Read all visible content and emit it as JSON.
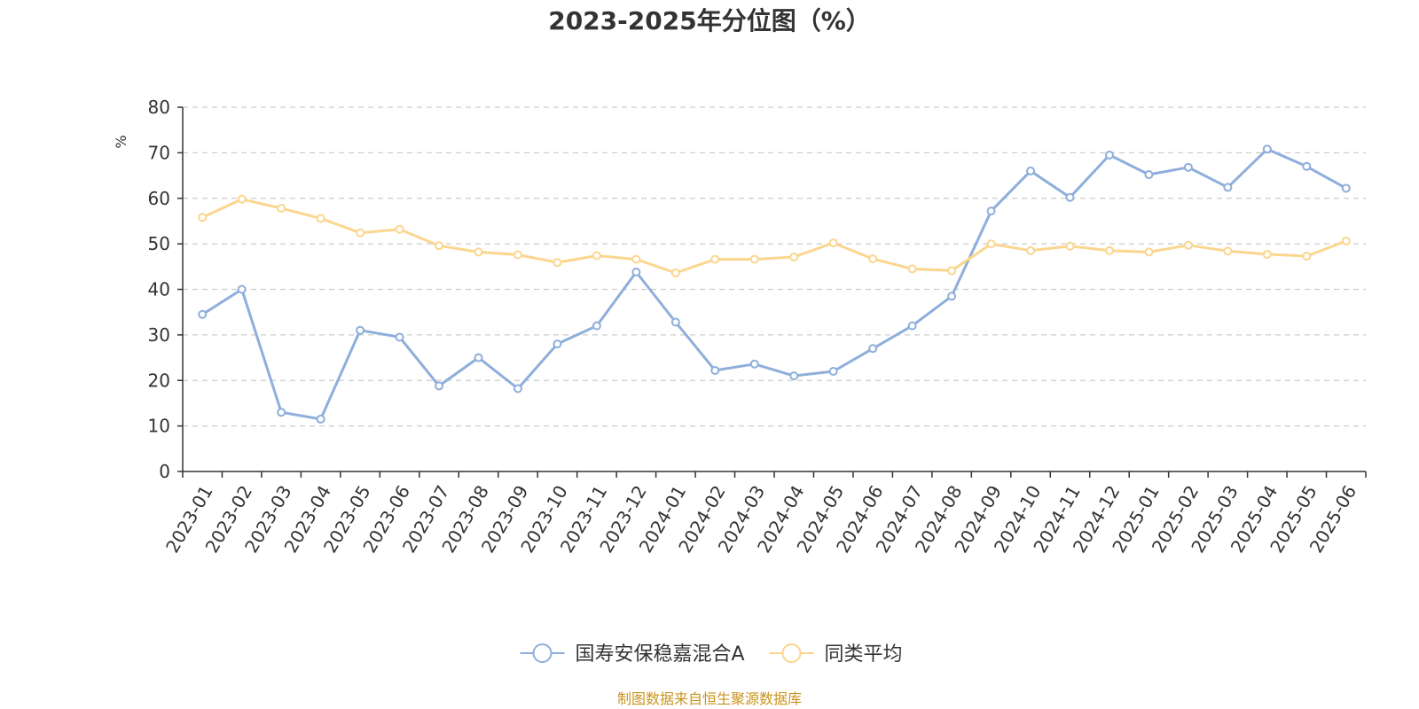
{
  "chart_data": {
    "type": "line",
    "title": "2023-2025年分位图（%）",
    "ylabel": "%",
    "xlabel": "",
    "ylim": [
      0,
      80
    ],
    "yticks": [
      0,
      10,
      20,
      30,
      40,
      50,
      60,
      70,
      80
    ],
    "grid": true,
    "legend_position": "bottom",
    "categories": [
      "2023-01",
      "2023-02",
      "2023-03",
      "2023-04",
      "2023-05",
      "2023-06",
      "2023-07",
      "2023-08",
      "2023-09",
      "2023-10",
      "2023-11",
      "2023-12",
      "2024-01",
      "2024-02",
      "2024-03",
      "2024-04",
      "2024-05",
      "2024-06",
      "2024-07",
      "2024-08",
      "2024-09",
      "2024-10",
      "2024-11",
      "2024-12",
      "2025-01",
      "2025-02",
      "2025-03",
      "2025-04",
      "2025-05",
      "2025-06"
    ],
    "series": [
      {
        "name": "国寿安保稳嘉混合A",
        "color": "#8eaedb",
        "values": [
          34.5,
          40.0,
          13.0,
          11.5,
          31.0,
          29.5,
          18.8,
          25.0,
          18.2,
          28.0,
          32.0,
          43.8,
          32.8,
          22.2,
          23.6,
          21.0,
          22.0,
          27.0,
          32.0,
          38.5,
          57.2,
          66.0,
          60.2,
          69.5,
          65.2,
          66.8,
          62.4,
          70.8,
          67.0,
          62.2
        ]
      },
      {
        "name": "同类平均",
        "color": "#fbd68e",
        "values": [
          55.8,
          59.8,
          57.8,
          55.6,
          52.4,
          53.2,
          49.6,
          48.2,
          47.6,
          45.9,
          47.4,
          46.6,
          43.6,
          46.6,
          46.6,
          47.1,
          50.2,
          46.7,
          44.5,
          44.1,
          50.0,
          48.5,
          49.5,
          48.5,
          48.2,
          49.7,
          48.4,
          47.7,
          47.3,
          50.6
        ]
      }
    ]
  },
  "source_note": "制图数据来自恒生聚源数据库"
}
